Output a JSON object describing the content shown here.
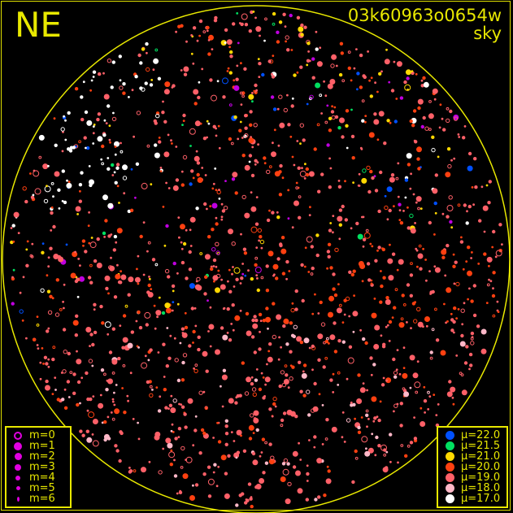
{
  "title": "03k60963o0654w",
  "subtitle": "sky",
  "direction_label": "NE",
  "colors": {
    "frame": "#e8e800",
    "background": "#000000"
  },
  "magnitude_legend": {
    "marker_color": "#e000e0",
    "items": [
      {
        "label": "m=0",
        "style": "ring"
      },
      {
        "label": "m=1"
      },
      {
        "label": "m=2"
      },
      {
        "label": "m=3"
      },
      {
        "label": "m=4"
      },
      {
        "label": "m=5"
      },
      {
        "label": "m=6"
      }
    ]
  },
  "surface_brightness_legend": {
    "items": [
      {
        "label": "μ=22.0",
        "color": "#0050ff"
      },
      {
        "label": "μ=21.5",
        "color": "#00e060"
      },
      {
        "label": "μ=21.0",
        "color": "#ffd800"
      },
      {
        "label": "μ=20.0",
        "color": "#ff4010"
      },
      {
        "label": "μ=19.0",
        "color": "#ff6068"
      },
      {
        "label": "μ=18.0",
        "color": "#ffb8c8"
      },
      {
        "label": "μ=17.0",
        "color": "#ffffff"
      }
    ]
  },
  "chart_data": {
    "type": "scatter",
    "title": "03k60963o0654w",
    "subtitle": "sky",
    "projection": "all-sky circle",
    "legend_placement": [
      "bottom-left",
      "bottom-right"
    ]
  }
}
